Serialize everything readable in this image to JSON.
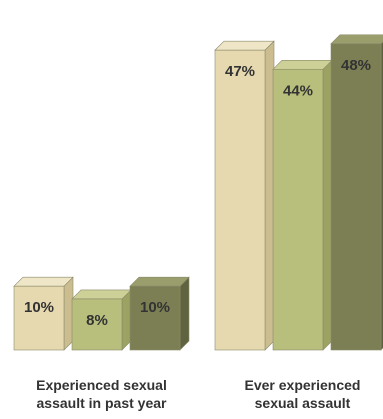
{
  "chart_data": {
    "type": "bar",
    "categories": [
      [
        "Experienced sexual",
        "assault in past year"
      ],
      [
        "Ever experienced",
        "sexual assault"
      ]
    ],
    "series": [
      {
        "values": [
          10,
          47
        ],
        "labels": [
          "10%",
          "47%"
        ]
      },
      {
        "values": [
          8,
          44
        ],
        "labels": [
          "8%",
          "44%"
        ]
      },
      {
        "values": [
          10,
          48
        ],
        "labels": [
          "10%",
          "48%"
        ]
      }
    ],
    "colors": {
      "series_front": [
        "#e6d9b0",
        "#b8be7b",
        "#7c7f54"
      ],
      "series_top": [
        "#efe6c8",
        "#cdd197",
        "#9a9d6c"
      ],
      "series_side": [
        "#cbbd90",
        "#9ca262",
        "#60633f"
      ],
      "edge": "#8a8a6a"
    },
    "title": "",
    "xlabel": "",
    "ylabel": "",
    "ylim": [
      0,
      50
    ],
    "grid": false,
    "legend": "none"
  }
}
